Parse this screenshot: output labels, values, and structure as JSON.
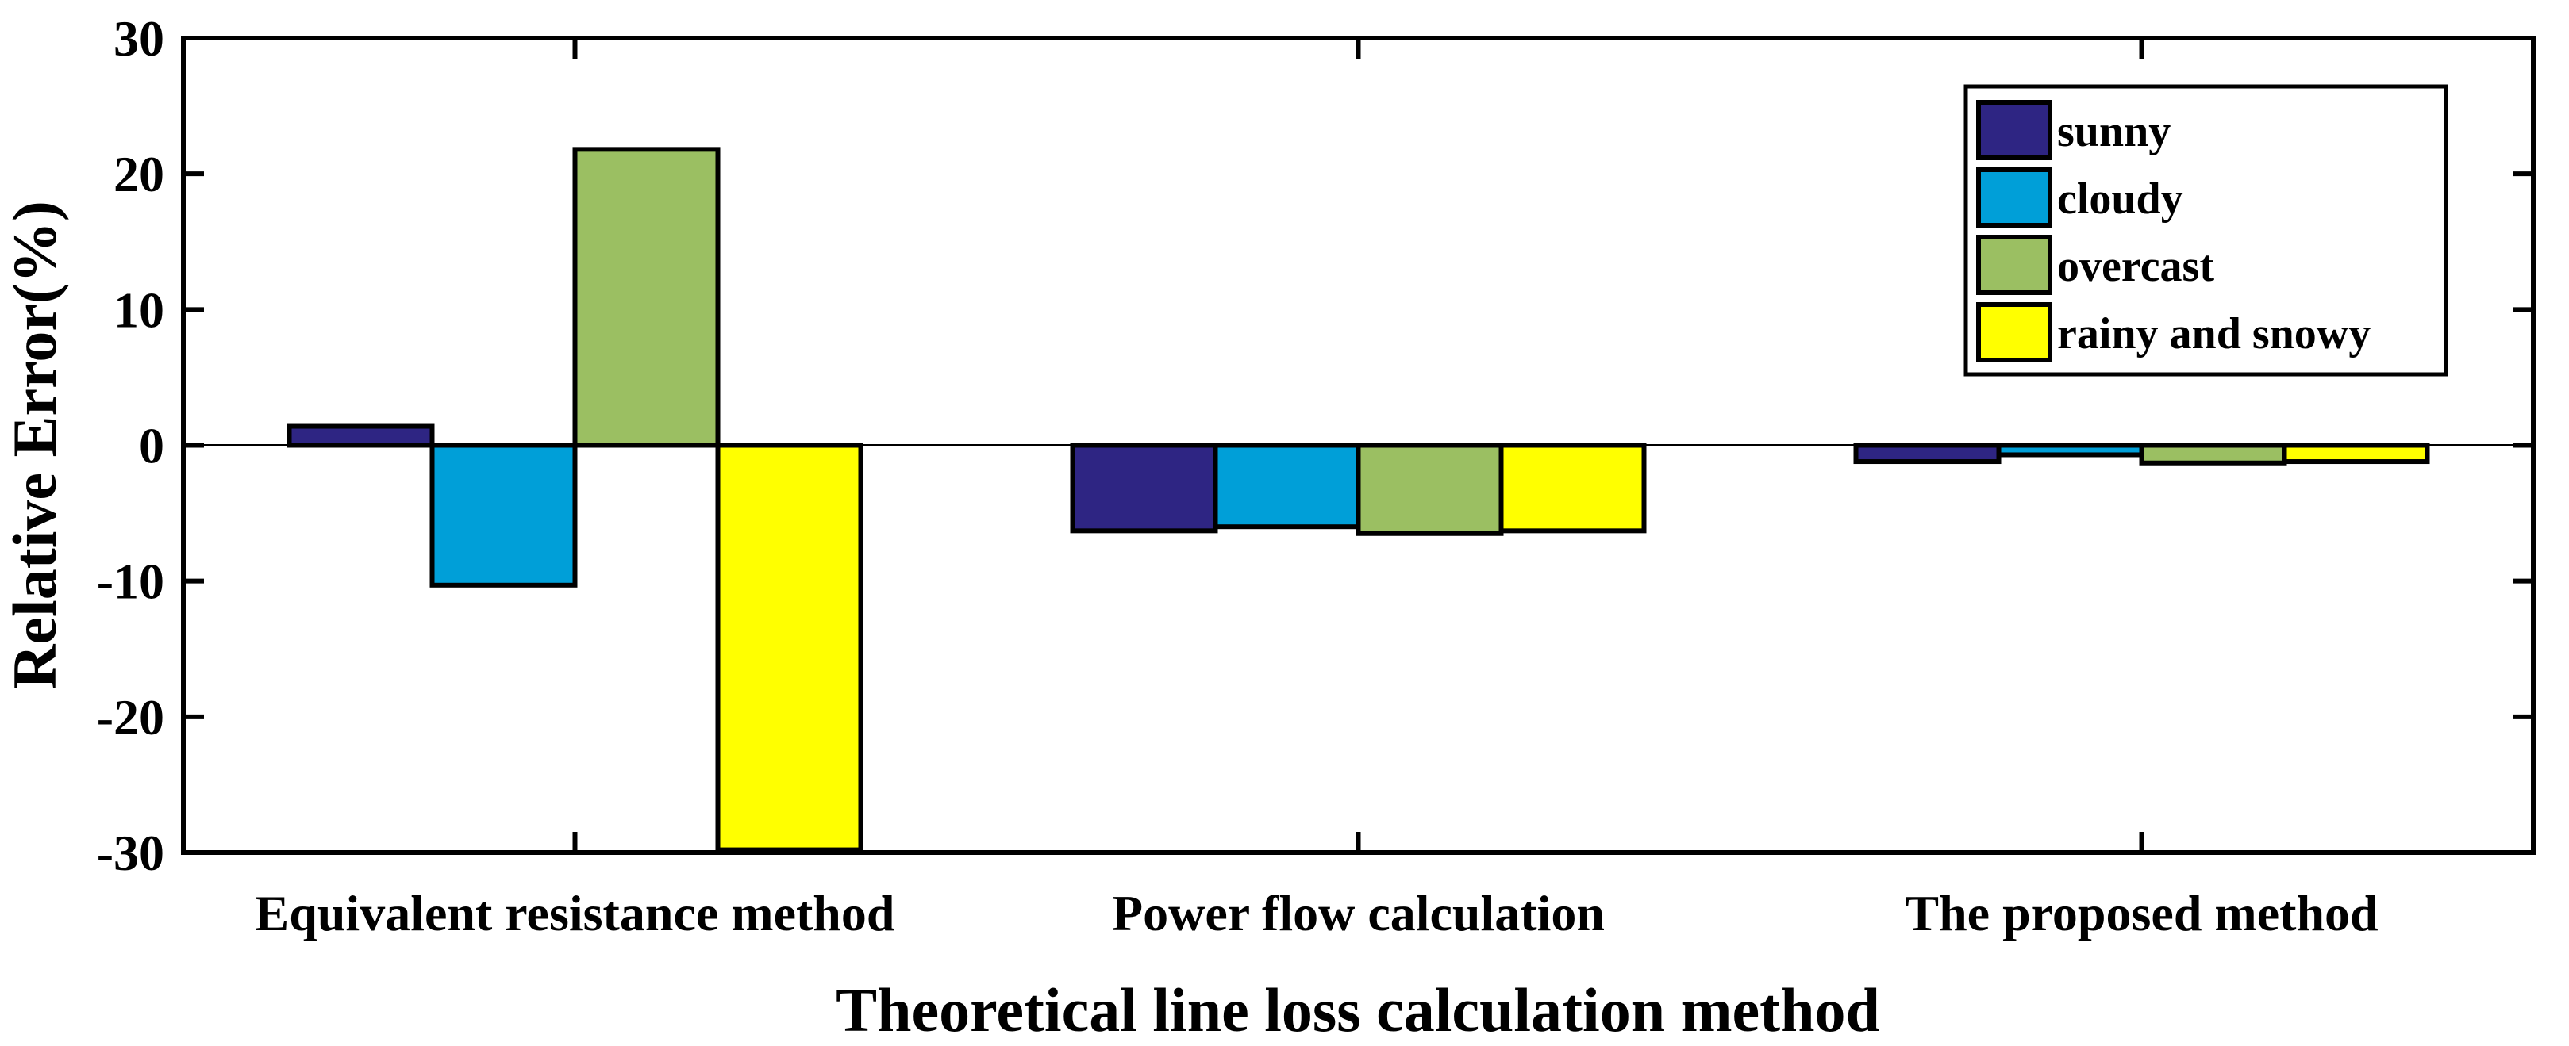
{
  "chart_data": {
    "type": "bar",
    "title": "",
    "xlabel": "Theoretical line loss calculation method",
    "ylabel": "Relative Error(%)",
    "ylim": [
      -30,
      30
    ],
    "yticks": [
      30,
      20,
      10,
      0,
      -10,
      -20,
      -30
    ],
    "ytick_labels": [
      "30",
      "20",
      "10",
      "0",
      "-10",
      "-20",
      "-30"
    ],
    "categories": [
      "Equivalent resistance method",
      "Power flow calculation",
      "The proposed method"
    ],
    "series": [
      {
        "name": "sunny",
        "color": "#2e2583",
        "values": [
          1.4,
          -6.3,
          -1.2
        ]
      },
      {
        "name": "cloudy",
        "color": "#009fd8",
        "values": [
          -10.3,
          -6.0,
          -0.7
        ]
      },
      {
        "name": "overcast",
        "color": "#9bbf62",
        "values": [
          21.8,
          -6.5,
          -1.3
        ]
      },
      {
        "name": "rainy and snowy",
        "color": "#ffff00",
        "values": [
          -29.8,
          -6.3,
          -1.2
        ]
      }
    ],
    "legend_position": "top-right",
    "grid": false
  }
}
